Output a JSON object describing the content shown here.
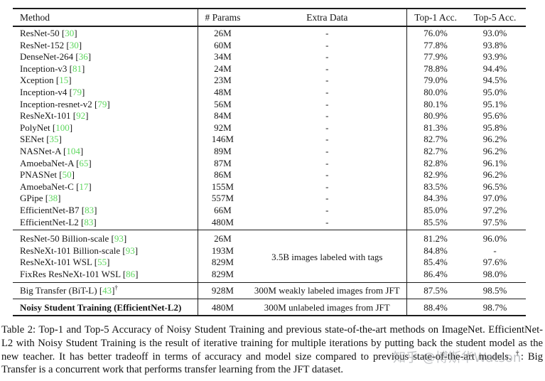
{
  "colors": {
    "citation_green": "#5cd65c",
    "rule_black": "#1c1c1c"
  },
  "table": {
    "headers": [
      "Method",
      "# Params",
      "Extra Data",
      "Top-1 Acc.",
      "Top-5 Acc."
    ],
    "sections": [
      {
        "rows": [
          {
            "method": "ResNet-50",
            "cite": "30",
            "params": "26M",
            "extra": "-",
            "top1": "76.0%",
            "top5": "93.0%"
          },
          {
            "method": "ResNet-152",
            "cite": "30",
            "params": "60M",
            "extra": "-",
            "top1": "77.8%",
            "top5": "93.8%"
          },
          {
            "method": "DenseNet-264",
            "cite": "36",
            "params": "34M",
            "extra": "-",
            "top1": "77.9%",
            "top5": "93.9%"
          },
          {
            "method": "Inception-v3",
            "cite": "81",
            "params": "24M",
            "extra": "-",
            "top1": "78.8%",
            "top5": "94.4%"
          },
          {
            "method": "Xception",
            "cite": "15",
            "params": "23M",
            "extra": "-",
            "top1": "79.0%",
            "top5": "94.5%"
          },
          {
            "method": "Inception-v4",
            "cite": "79",
            "params": "48M",
            "extra": "-",
            "top1": "80.0%",
            "top5": "95.0%"
          },
          {
            "method": "Inception-resnet-v2",
            "cite": "79",
            "params": "56M",
            "extra": "-",
            "top1": "80.1%",
            "top5": "95.1%"
          },
          {
            "method": "ResNeXt-101",
            "cite": "92",
            "params": "84M",
            "extra": "-",
            "top1": "80.9%",
            "top5": "95.6%"
          },
          {
            "method": "PolyNet",
            "cite": "100",
            "params": "92M",
            "extra": "-",
            "top1": "81.3%",
            "top5": "95.8%"
          },
          {
            "method": "SENet",
            "cite": "35",
            "params": "146M",
            "extra": "-",
            "top1": "82.7%",
            "top5": "96.2%"
          },
          {
            "method": "NASNet-A",
            "cite": "104",
            "params": "89M",
            "extra": "-",
            "top1": "82.7%",
            "top5": "96.2%"
          },
          {
            "method": "AmoebaNet-A",
            "cite": "65",
            "params": "87M",
            "extra": "-",
            "top1": "82.8%",
            "top5": "96.1%"
          },
          {
            "method": "PNASNet",
            "cite": "50",
            "params": "86M",
            "extra": "-",
            "top1": "82.9%",
            "top5": "96.2%"
          },
          {
            "method": "AmoebaNet-C",
            "cite": "17",
            "params": "155M",
            "extra": "-",
            "top1": "83.5%",
            "top5": "96.5%"
          },
          {
            "method": "GPipe",
            "cite": "38",
            "params": "557M",
            "extra": "-",
            "top1": "84.3%",
            "top5": "97.0%"
          },
          {
            "method": "EfficientNet-B7",
            "cite": "83",
            "params": "66M",
            "extra": "-",
            "top1": "85.0%",
            "top5": "97.2%"
          },
          {
            "method": "EfficientNet-L2",
            "cite": "83",
            "params": "480M",
            "extra": "-",
            "top1": "85.5%",
            "top5": "97.5%"
          }
        ]
      },
      {
        "merged_extra": "3.5B images labeled with tags",
        "rows": [
          {
            "method": "ResNet-50 Billion-scale",
            "cite": "93",
            "params": "26M",
            "top1": "81.2%",
            "top5": "96.0%"
          },
          {
            "method": "ResNeXt-101 Billion-scale",
            "cite": "93",
            "params": "193M",
            "top1": "84.8%",
            "top5": "-"
          },
          {
            "method": "ResNeXt-101 WSL",
            "cite": "55",
            "params": "829M",
            "top1": "85.4%",
            "top5": "97.6%"
          },
          {
            "method": "FixRes ResNeXt-101 WSL",
            "cite": "86",
            "params": "829M",
            "top1": "86.4%",
            "top5": "98.0%"
          }
        ]
      },
      {
        "rows": [
          {
            "method": "Big Transfer (BiT-L)",
            "cite": "43",
            "dagger": true,
            "params": "928M",
            "extra": "300M weakly labeled images from JFT",
            "top1": "87.5%",
            "top5": "98.5%"
          }
        ]
      },
      {
        "rows": [
          {
            "method": "Noisy Student Training (EfficientNet-L2)",
            "bold": true,
            "params": "480M",
            "extra": "300M unlabeled images from JFT",
            "top1": "88.4%",
            "top5": "98.7%",
            "bold_acc": true
          }
        ]
      }
    ]
  },
  "caption": {
    "text_before_dagger": "Table 2:  Top-1 and Top-5 Accuracy of Noisy Student Training and previous state-of-the-art methods on ImageNet. EfficientNet-L2 with Noisy Student Training is the result of iterative training for multiple iterations by putting back the student model as the new teacher. It has better tradeoff in terms of accuracy and model size compared to previous state-of-the-art models. ",
    "dagger": "†",
    "text_after_dagger": ": Big Transfer is a concurrent work that performs transfer learning from the JFT dataset."
  },
  "watermark": {
    "text": "知乎 @博斯华Watson"
  }
}
